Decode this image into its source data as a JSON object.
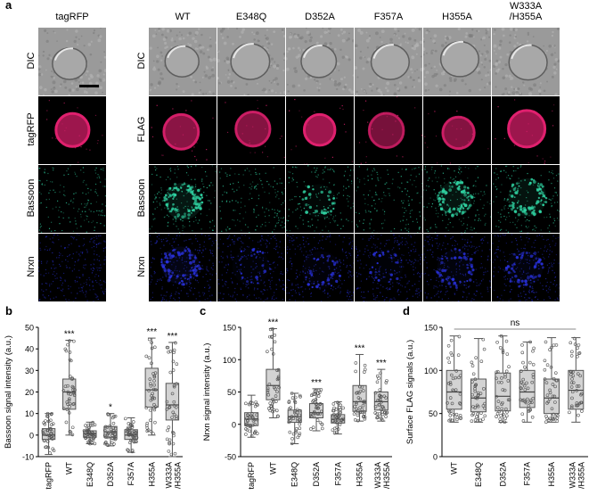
{
  "panel_labels": {
    "a": "a",
    "b": "b",
    "c": "c",
    "d": "d"
  },
  "panel_a": {
    "columns": [
      "tagRFP",
      "WT",
      "E348Q",
      "D352A",
      "F357A",
      "H355A",
      "W333A\n/H355A"
    ],
    "left_rows": [
      "DIC",
      "tagRFP",
      "Bassoon",
      "Nrxn"
    ],
    "right_rows": [
      "DIC",
      "FLAG",
      "Bassoon",
      "Nrxn"
    ],
    "colors": {
      "dic": "#9a9a9a",
      "red": "#e0206e",
      "green": "#2fd0a0",
      "blue": "#2830d8",
      "bg": "#000000"
    }
  },
  "chart_data": [
    {
      "type": "box",
      "ylabel": "Bassoon signal intensity (a.u.)",
      "categories": [
        "tagRFP",
        "WT",
        "E348Q",
        "D352A",
        "F357A",
        "H355A",
        "W333A\n/H355A"
      ],
      "ylim": [
        -10,
        50
      ],
      "yticks": [
        -10,
        0,
        10,
        20,
        30,
        40,
        50
      ],
      "boxes": [
        {
          "q1": -2,
          "median": 0,
          "q3": 3,
          "whislo": -9,
          "whishi": 10
        },
        {
          "q1": 12,
          "median": 20,
          "q3": 26,
          "whislo": 0,
          "whishi": 44
        },
        {
          "q1": -1,
          "median": 0.5,
          "q3": 2,
          "whislo": -4,
          "whishi": 6
        },
        {
          "q1": -1,
          "median": 1.5,
          "q3": 4,
          "whislo": -5,
          "whishi": 10
        },
        {
          "q1": -2,
          "median": 0,
          "q3": 2.5,
          "whislo": -8,
          "whishi": 8
        },
        {
          "q1": 13,
          "median": 21,
          "q3": 31,
          "whislo": 0,
          "whishi": 45
        },
        {
          "q1": 7,
          "median": 14,
          "q3": 24,
          "whislo": -10,
          "whishi": 43
        }
      ],
      "significance": [
        "",
        "***",
        "",
        "*",
        "",
        "***",
        "***"
      ]
    },
    {
      "type": "box",
      "ylabel": "Nrxn signal intensity (a.u.)",
      "categories": [
        "tagRFP",
        "WT",
        "E348Q",
        "D352A",
        "F357A",
        "H355A",
        "W333A\n/H355A"
      ],
      "ylim": [
        -50,
        150
      ],
      "yticks": [
        -50,
        0,
        50,
        100,
        150
      ],
      "boxes": [
        {
          "q1": -2,
          "median": 8,
          "q3": 18,
          "whislo": -20,
          "whishi": 45
        },
        {
          "q1": 38,
          "median": 60,
          "q3": 85,
          "whislo": 10,
          "whishi": 148
        },
        {
          "q1": 3,
          "median": 12,
          "q3": 22,
          "whislo": -30,
          "whishi": 48
        },
        {
          "q1": 10,
          "median": 18,
          "q3": 32,
          "whislo": -10,
          "whishi": 55
        },
        {
          "q1": 2,
          "median": 8,
          "q3": 15,
          "whislo": -15,
          "whishi": 35
        },
        {
          "q1": 20,
          "median": 35,
          "q3": 60,
          "whislo": 5,
          "whishi": 108
        },
        {
          "q1": 22,
          "median": 35,
          "q3": 50,
          "whislo": 5,
          "whishi": 85
        }
      ],
      "significance": [
        "",
        "***",
        "",
        "***",
        "",
        "***",
        "***"
      ]
    },
    {
      "type": "box",
      "ylabel": "Surface FLAG signals (a.u.)",
      "categories": [
        "WT",
        "E348Q",
        "D352A",
        "F357A",
        "H355A",
        "W333A\n/H355A"
      ],
      "ylim": [
        0,
        150
      ],
      "yticks": [
        0,
        50,
        100,
        150
      ],
      "boxes": [
        {
          "q1": 55,
          "median": 75,
          "q3": 100,
          "whislo": 40,
          "whishi": 140
        },
        {
          "q1": 52,
          "median": 68,
          "q3": 90,
          "whislo": 40,
          "whishi": 137
        },
        {
          "q1": 53,
          "median": 70,
          "q3": 97,
          "whislo": 40,
          "whishi": 140
        },
        {
          "q1": 57,
          "median": 75,
          "q3": 100,
          "whislo": 40,
          "whishi": 133
        },
        {
          "q1": 50,
          "median": 68,
          "q3": 90,
          "whislo": 40,
          "whishi": 138
        },
        {
          "q1": 55,
          "median": 77,
          "q3": 100,
          "whislo": 40,
          "whishi": 138
        }
      ],
      "bracket_label": "ns"
    }
  ]
}
